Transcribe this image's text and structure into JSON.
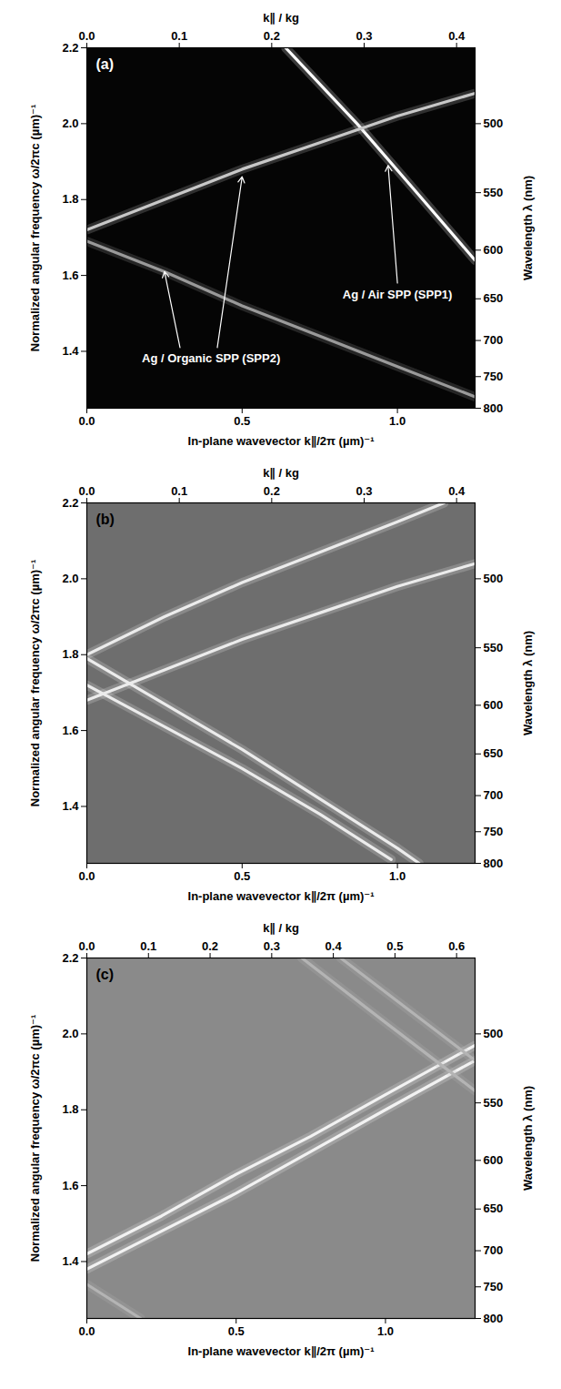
{
  "chart_data": [
    {
      "type": "line",
      "label": "(a)",
      "xlabel": "In-plane wavevector k∥/2π (µm)⁻¹",
      "ylabel": "Normalized angular frequency ω/2πc (µm)⁻¹",
      "x2label": "k∥ / kg",
      "y2label": "Wavelength λ (nm)",
      "xlim": [
        0,
        1.25
      ],
      "xticks": [
        {
          "value": 0,
          "label": "0.0"
        },
        0.5,
        {
          "value": 1,
          "label": "1.0"
        }
      ],
      "ylim": [
        1.25,
        2.2
      ],
      "yticks": [
        1.4,
        1.6,
        1.8,
        {
          "value": 2,
          "label": "2.0"
        },
        2.2
      ],
      "x2lim": [
        0,
        0.42
      ],
      "x2ticks": [
        {
          "value": 0,
          "label": "0.0"
        },
        0.1,
        0.2,
        0.3,
        0.4
      ],
      "y2lim": [
        800,
        454.5
      ],
      "y2ticks": [
        500,
        550,
        600,
        650,
        700,
        750,
        800
      ],
      "grid": false,
      "annotations": [
        "Ag / Air SPP (SPP1)",
        "Ag / Organic SPP (SPP2)"
      ],
      "series": [
        {
          "color": "#ffffff",
          "x": [
            0.64,
            0.87,
            1.05,
            1.25
          ],
          "values": [
            2.2,
            2.0,
            1.83,
            1.64
          ]
        },
        {
          "color": "#c8c8c8",
          "x": [
            0,
            0.25,
            0.5,
            0.75,
            1.0,
            1.25
          ],
          "values": [
            1.72,
            1.8,
            1.88,
            1.95,
            2.02,
            2.08
          ]
        },
        {
          "color": "#9a9a9a",
          "x": [
            0,
            0.25,
            0.5,
            0.75,
            1.0,
            1.25
          ],
          "values": [
            1.69,
            1.61,
            1.52,
            1.44,
            1.36,
            1.28
          ]
        }
      ]
    },
    {
      "type": "line",
      "label": "(b)",
      "xlabel": "In-plane wavevector k∥/2π (µm)⁻¹",
      "ylabel": "Normalized angular frequency ω/2πc (µm)⁻¹",
      "x2label": "k∥ / kg",
      "y2label": "Wavelength λ (nm)",
      "xlim": [
        0,
        1.25
      ],
      "xticks": [
        {
          "value": 0,
          "label": "0.0"
        },
        0.5,
        {
          "value": 1,
          "label": "1.0"
        }
      ],
      "ylim": [
        1.25,
        2.2
      ],
      "yticks": [
        1.4,
        1.6,
        1.8,
        {
          "value": 2,
          "label": "2.0"
        },
        2.2
      ],
      "x2lim": [
        0,
        0.42
      ],
      "x2ticks": [
        {
          "value": 0,
          "label": "0.0"
        },
        0.1,
        0.2,
        0.3,
        0.4
      ],
      "y2lim": [
        800,
        454.5
      ],
      "y2ticks": [
        500,
        550,
        600,
        650,
        700,
        750,
        800
      ],
      "grid": false,
      "series": [
        {
          "color": "#ececec",
          "x": [
            0,
            0.25,
            0.5,
            0.75,
            1.0,
            1.15
          ],
          "values": [
            1.8,
            1.9,
            1.99,
            2.07,
            2.15,
            2.2
          ]
        },
        {
          "color": "#ececec",
          "x": [
            0,
            0.25,
            0.5,
            0.75,
            1.0,
            1.25
          ],
          "values": [
            1.68,
            1.76,
            1.84,
            1.91,
            1.98,
            2.04
          ]
        },
        {
          "color": "#ececec",
          "x": [
            0,
            0.25,
            0.5,
            0.75,
            1.0,
            1.07
          ],
          "values": [
            1.79,
            1.67,
            1.55,
            1.42,
            1.29,
            1.25
          ]
        },
        {
          "color": "#ececec",
          "x": [
            0,
            0.25,
            0.5,
            0.75,
            0.98
          ],
          "values": [
            1.72,
            1.61,
            1.5,
            1.38,
            1.26
          ]
        }
      ]
    },
    {
      "type": "line",
      "label": "(c)",
      "xlabel": "In-plane wavevector k∥/2π (µm)⁻¹",
      "ylabel": "Normalized angular frequency ω/2πc (µm)⁻¹",
      "x2label": "k∥ / kg",
      "y2label": "Wavelength λ (nm)",
      "xlim": [
        0,
        1.3
      ],
      "xticks": [
        {
          "value": 0,
          "label": "0.0"
        },
        0.5,
        {
          "value": 1,
          "label": "1.0"
        }
      ],
      "ylim": [
        1.25,
        2.2
      ],
      "yticks": [
        1.4,
        1.6,
        1.8,
        {
          "value": 2,
          "label": "2.0"
        },
        2.2
      ],
      "x2lim": [
        0,
        0.63
      ],
      "x2ticks": [
        {
          "value": 0,
          "label": "0.0"
        },
        0.1,
        0.2,
        0.3,
        0.4,
        0.5,
        0.6
      ],
      "y2lim": [
        800,
        454.5
      ],
      "y2ticks": [
        500,
        550,
        600,
        650,
        700,
        750,
        800
      ],
      "grid": false,
      "series": [
        {
          "color": "#f2f2f2",
          "x": [
            0,
            0.25,
            0.5,
            0.75,
            1.0,
            1.3
          ],
          "values": [
            1.42,
            1.52,
            1.63,
            1.73,
            1.84,
            1.97
          ]
        },
        {
          "color": "#f2f2f2",
          "x": [
            0,
            0.25,
            0.5,
            0.75,
            1.0,
            1.3
          ],
          "values": [
            1.38,
            1.48,
            1.58,
            1.69,
            1.8,
            1.93
          ]
        },
        {
          "color": "#b4b4b4",
          "x": [
            0.72,
            1.0,
            1.3
          ],
          "values": [
            2.2,
            2.03,
            1.85
          ]
        },
        {
          "color": "#b4b4b4",
          "x": [
            0.85,
            1.1,
            1.3
          ],
          "values": [
            2.2,
            2.05,
            1.93
          ]
        },
        {
          "color": "#b4b4b4",
          "x": [
            0,
            0.18
          ],
          "values": [
            1.34,
            1.25
          ]
        }
      ]
    }
  ]
}
